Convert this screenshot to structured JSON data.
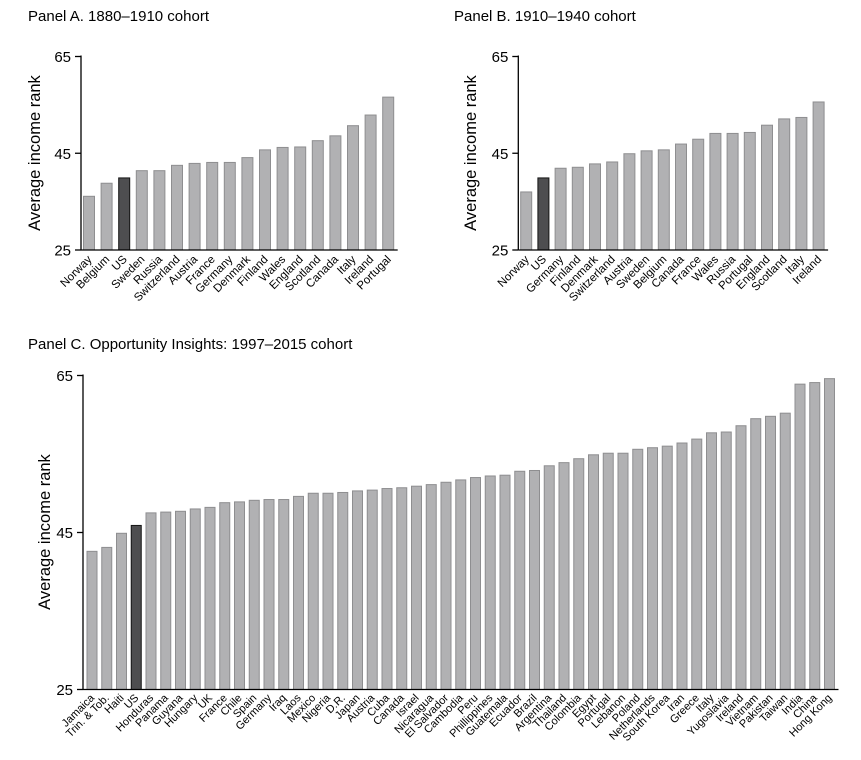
{
  "figure": {
    "ylabel": "Average income rank",
    "highlight_country": "US",
    "colors": {
      "bar_fill": "#b1b1b3",
      "bar_stroke": "#8e8e90",
      "highlight_fill": "#4e4e50",
      "highlight_stroke": "#151515",
      "axis": "#000000",
      "background": "#ffffff"
    }
  },
  "chart_data": [
    {
      "type": "bar",
      "title": "Panel A. 1880–1910 cohort",
      "ylabel": "Average income rank",
      "xlabel": "",
      "ylim": [
        25,
        65
      ],
      "yticks": [
        25,
        45,
        65
      ],
      "grid": false,
      "legend": "none",
      "highlight": "US",
      "categories": [
        "Norway",
        "Belgium",
        "US",
        "Sweden",
        "Russia",
        "Switzerland",
        "Austria",
        "France",
        "Germany",
        "Denmark",
        "Finland",
        "Wales",
        "England",
        "Scotland",
        "Canada",
        "Italy",
        "Ireland",
        "Portugal"
      ],
      "values": [
        36.1,
        38.8,
        39.9,
        41.4,
        41.4,
        42.5,
        42.9,
        43.1,
        43.1,
        44.1,
        45.7,
        46.2,
        46.3,
        47.6,
        48.6,
        50.7,
        52.9,
        56.6
      ]
    },
    {
      "type": "bar",
      "title": "Panel B. 1910–1940 cohort",
      "ylabel": "Average income rank",
      "xlabel": "",
      "ylim": [
        25,
        65
      ],
      "yticks": [
        25,
        45,
        65
      ],
      "grid": false,
      "legend": "none",
      "highlight": "US",
      "categories": [
        "Norway",
        "US",
        "Germany",
        "Finland",
        "Denmark",
        "Switzerland",
        "Austria",
        "Sweden",
        "Belgium",
        "Canada",
        "France",
        "Wales",
        "Russia",
        "Portugal",
        "England",
        "Scotland",
        "Italy",
        "Ireland"
      ],
      "values": [
        37.0,
        39.9,
        41.9,
        42.1,
        42.8,
        43.2,
        44.9,
        45.5,
        45.7,
        46.9,
        47.9,
        49.1,
        49.1,
        49.3,
        50.8,
        52.1,
        52.4,
        55.6
      ]
    },
    {
      "type": "bar",
      "title": "Panel C. Opportunity Insights: 1997–2015 cohort",
      "ylabel": "Average income rank",
      "xlabel": "",
      "ylim": [
        25,
        65
      ],
      "yticks": [
        25,
        45,
        65
      ],
      "grid": false,
      "legend": "none",
      "highlight": "US",
      "categories": [
        "Jamaica",
        "Trin. & Tob.",
        "Haiti",
        "US",
        "Honduras",
        "Panama",
        "Guyana",
        "Hungary",
        "UK",
        "France",
        "Chile",
        "Spain",
        "Germany",
        "Iraq",
        "Laos",
        "Mexico",
        "Nigeria",
        "D.R.",
        "Japan",
        "Austria",
        "Cuba",
        "Canada",
        "Israel",
        "Nicaragua",
        "El Salvador",
        "Cambodia",
        "Peru",
        "Phillippines",
        "Guatemala",
        "Ecuador",
        "Brazil",
        "Argentina",
        "Thailand",
        "Colombia",
        "Egypt",
        "Portugal",
        "Lebanon",
        "Poland",
        "Netherlands",
        "South Korea",
        "Iran",
        "Greece",
        "Italy",
        "Yugoslavia",
        "Ireland",
        "Vietnam",
        "Pakistan",
        "Taiwan",
        "India",
        "China",
        "Hong Kong"
      ],
      "values": [
        42.6,
        43.1,
        44.9,
        45.9,
        47.5,
        47.6,
        47.7,
        48.0,
        48.2,
        48.8,
        48.9,
        49.1,
        49.2,
        49.2,
        49.6,
        50.0,
        50.0,
        50.1,
        50.3,
        50.4,
        50.6,
        50.7,
        50.9,
        51.1,
        51.4,
        51.7,
        52.0,
        52.2,
        52.3,
        52.8,
        52.9,
        53.5,
        53.9,
        54.4,
        54.9,
        55.1,
        55.1,
        55.6,
        55.8,
        56.0,
        56.4,
        56.9,
        57.7,
        57.8,
        58.6,
        59.5,
        59.8,
        60.2,
        63.9,
        64.1,
        64.6
      ]
    }
  ]
}
